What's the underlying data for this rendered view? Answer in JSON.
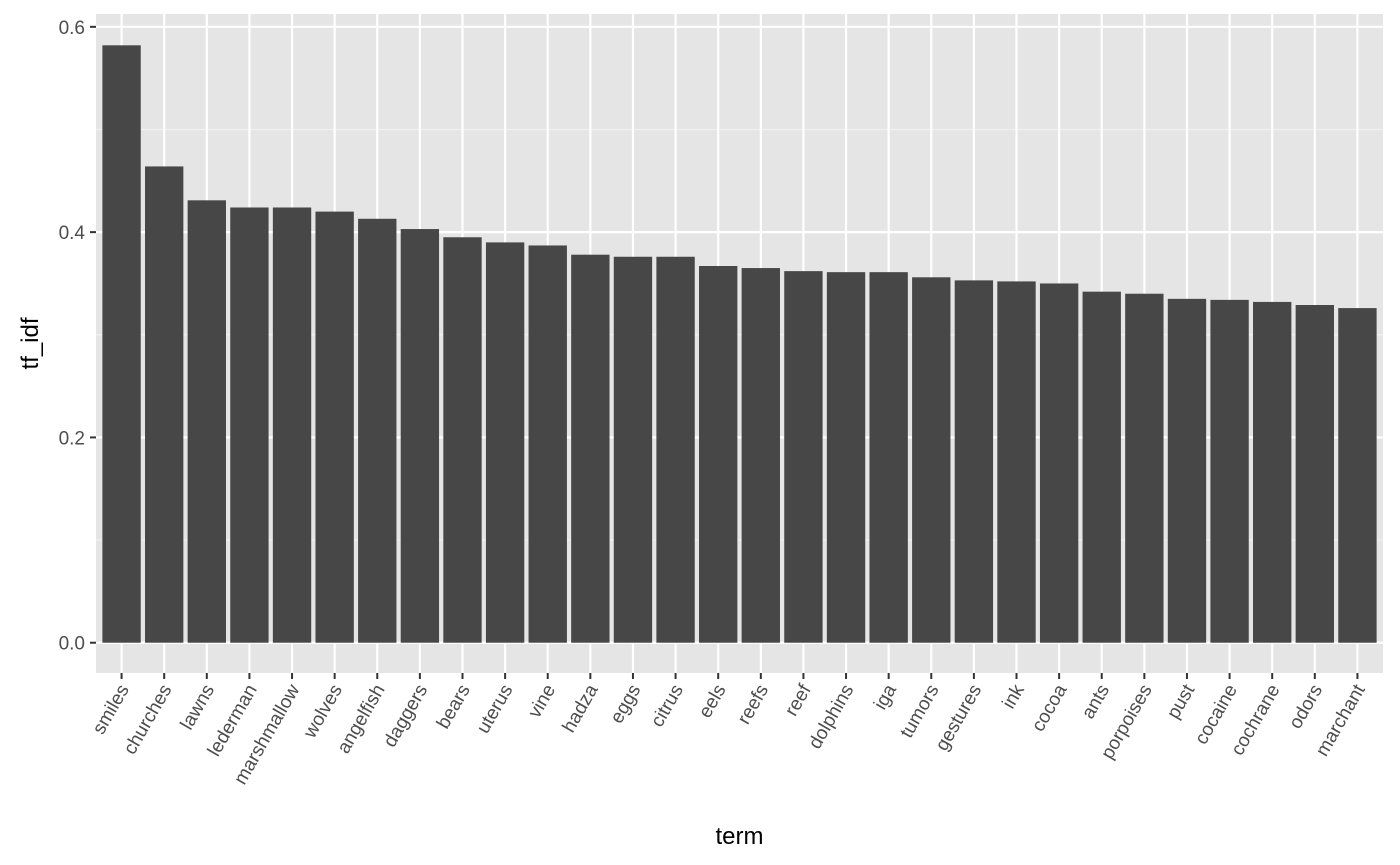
{
  "chart_data": {
    "type": "bar",
    "title": "",
    "xlabel": "term",
    "ylabel": "tf_idf",
    "categories": [
      "smiles",
      "churches",
      "lawns",
      "lederman",
      "marshmallow",
      "wolves",
      "angelfish",
      "daggers",
      "bears",
      "uterus",
      "vine",
      "hadza",
      "eggs",
      "citrus",
      "eels",
      "reefs",
      "reef",
      "dolphins",
      "iga",
      "tumors",
      "gestures",
      "ink",
      "cocoa",
      "ants",
      "porpoises",
      "pust",
      "cocaine",
      "cochrane",
      "odors",
      "marchant"
    ],
    "values": [
      0.582,
      0.464,
      0.431,
      0.424,
      0.424,
      0.42,
      0.413,
      0.403,
      0.395,
      0.39,
      0.387,
      0.378,
      0.376,
      0.376,
      0.367,
      0.365,
      0.362,
      0.361,
      0.361,
      0.356,
      0.353,
      0.352,
      0.35,
      0.342,
      0.34,
      0.335,
      0.334,
      0.332,
      0.329,
      0.326
    ],
    "ylim": [
      -0.0295,
      0.6125
    ],
    "yticks": [
      0.0,
      0.2,
      0.4,
      0.6
    ],
    "ytick_labels": [
      "0.0",
      "0.2",
      "0.4",
      "0.6"
    ],
    "grid": true,
    "legend": "none",
    "colors": {
      "bar": "#474747",
      "panel_background": "#e5e5e5",
      "grid_major": "#ffffff",
      "grid_minor": "#f2f2f2",
      "tick_text": "#4d4d4d",
      "tick_mark": "#333333",
      "axis_title": "#000000"
    }
  }
}
